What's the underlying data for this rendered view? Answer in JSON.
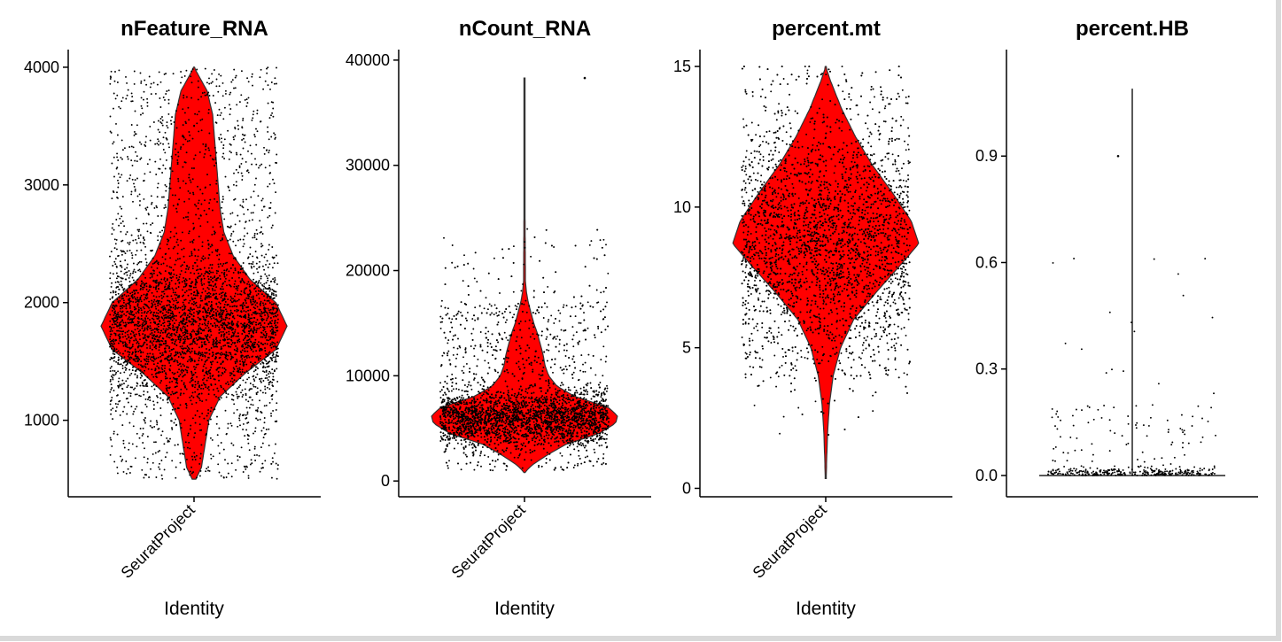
{
  "chart_data": [
    {
      "type": "violin",
      "title": "nFeature_RNA",
      "xlabel": "Identity",
      "categories": [
        "SeuratProject"
      ],
      "ylim": [
        350,
        4150
      ],
      "yticks": [
        1000,
        2000,
        3000,
        4000
      ],
      "ytick_labels": [
        "1000",
        "2000",
        "3000",
        "4000"
      ],
      "range": [
        500,
        4000
      ],
      "fill_color": "#ff0000",
      "point_color": "#000000",
      "density_profile": [
        [
          500,
          0.02
        ],
        [
          600,
          0.08
        ],
        [
          800,
          0.12
        ],
        [
          1000,
          0.16
        ],
        [
          1200,
          0.28
        ],
        [
          1400,
          0.55
        ],
        [
          1600,
          0.88
        ],
        [
          1800,
          1.0
        ],
        [
          2000,
          0.88
        ],
        [
          2200,
          0.6
        ],
        [
          2400,
          0.42
        ],
        [
          2600,
          0.32
        ],
        [
          2800,
          0.28
        ],
        [
          3000,
          0.26
        ],
        [
          3200,
          0.24
        ],
        [
          3400,
          0.22
        ],
        [
          3600,
          0.2
        ],
        [
          3800,
          0.14
        ],
        [
          4000,
          0.0
        ]
      ]
    },
    {
      "type": "violin",
      "title": "nCount_RNA",
      "xlabel": "Identity",
      "categories": [
        "SeuratProject"
      ],
      "ylim": [
        -1500,
        41000
      ],
      "yticks": [
        0,
        10000,
        20000,
        30000,
        40000
      ],
      "ytick_labels": [
        "0",
        "10000",
        "20000",
        "30000",
        "40000"
      ],
      "range": [
        800,
        38300
      ],
      "fill_color": "#ff0000",
      "point_color": "#000000",
      "density_profile": [
        [
          800,
          0.0
        ],
        [
          1500,
          0.08
        ],
        [
          2500,
          0.25
        ],
        [
          3500,
          0.45
        ],
        [
          4500,
          0.8
        ],
        [
          5500,
          0.98
        ],
        [
          6200,
          1.0
        ],
        [
          7000,
          0.9
        ],
        [
          8000,
          0.55
        ],
        [
          9000,
          0.35
        ],
        [
          10000,
          0.26
        ],
        [
          11000,
          0.22
        ],
        [
          12000,
          0.2
        ],
        [
          13000,
          0.17
        ],
        [
          14000,
          0.14
        ],
        [
          15000,
          0.1
        ],
        [
          16000,
          0.07
        ],
        [
          17000,
          0.04
        ],
        [
          18000,
          0.02
        ],
        [
          19000,
          0.01
        ],
        [
          25000,
          0.006
        ],
        [
          38300,
          0.004
        ]
      ]
    },
    {
      "type": "violin",
      "title": "percent.mt",
      "xlabel": "Identity",
      "categories": [
        "SeuratProject"
      ],
      "ylim": [
        -0.3,
        15.6
      ],
      "yticks": [
        0,
        5,
        10,
        15
      ],
      "ytick_labels": [
        "0",
        "5",
        "10",
        "15"
      ],
      "range": [
        0.35,
        15
      ],
      "fill_color": "#ff0000",
      "point_color": "#000000",
      "density_profile": [
        [
          0.35,
          0.005
        ],
        [
          1,
          0.01
        ],
        [
          2,
          0.02
        ],
        [
          3,
          0.04
        ],
        [
          4,
          0.08
        ],
        [
          5,
          0.16
        ],
        [
          6,
          0.3
        ],
        [
          7,
          0.55
        ],
        [
          8,
          0.82
        ],
        [
          8.7,
          1.0
        ],
        [
          9.5,
          0.92
        ],
        [
          10.5,
          0.72
        ],
        [
          11.5,
          0.5
        ],
        [
          12.5,
          0.32
        ],
        [
          13.5,
          0.17
        ],
        [
          14.5,
          0.05
        ],
        [
          15,
          0.0
        ]
      ]
    },
    {
      "type": "violin",
      "title": "percent.HB",
      "xlabel": "",
      "categories": [],
      "ylim": [
        -0.06,
        1.2
      ],
      "yticks": [
        0.0,
        0.3,
        0.6,
        0.9
      ],
      "ytick_labels": [
        "0.0",
        "0.3",
        "0.6",
        "0.9"
      ],
      "range": [
        0,
        1.09
      ],
      "fill_color": "#ff0000",
      "point_color": "#000000",
      "density_profile": [
        [
          0,
          1.0
        ],
        [
          0.01,
          0.0
        ],
        [
          1.09,
          0.0
        ]
      ]
    }
  ]
}
